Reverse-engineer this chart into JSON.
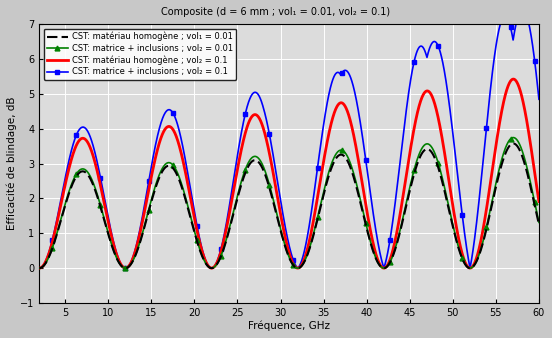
{
  "title": "Composite (d = 6 mm ; vol₁ = 0.01, vol₂ = 0.1)",
  "xlabel": "Fréquence, GHz",
  "ylabel": "Efficacité de blindage, dB",
  "xlim": [
    2,
    60
  ],
  "ylim": [
    -1,
    7
  ],
  "yticks": [
    -1,
    0,
    1,
    2,
    3,
    4,
    5,
    6,
    7
  ],
  "xticks": [
    5,
    10,
    15,
    20,
    25,
    30,
    35,
    40,
    45,
    50,
    55,
    60
  ],
  "legend": [
    "CST: matériau homogène ; vol₁ = 0.01",
    "CST: matrice + inclusions ; vol₂ = 0.01",
    "CST: matériau homogène ; vol₂ = 0.1",
    "CST: matrice + inclusions ; vol₂ = 0.1"
  ],
  "fig_width": 5.52,
  "fig_height": 3.38,
  "dpi": 100
}
